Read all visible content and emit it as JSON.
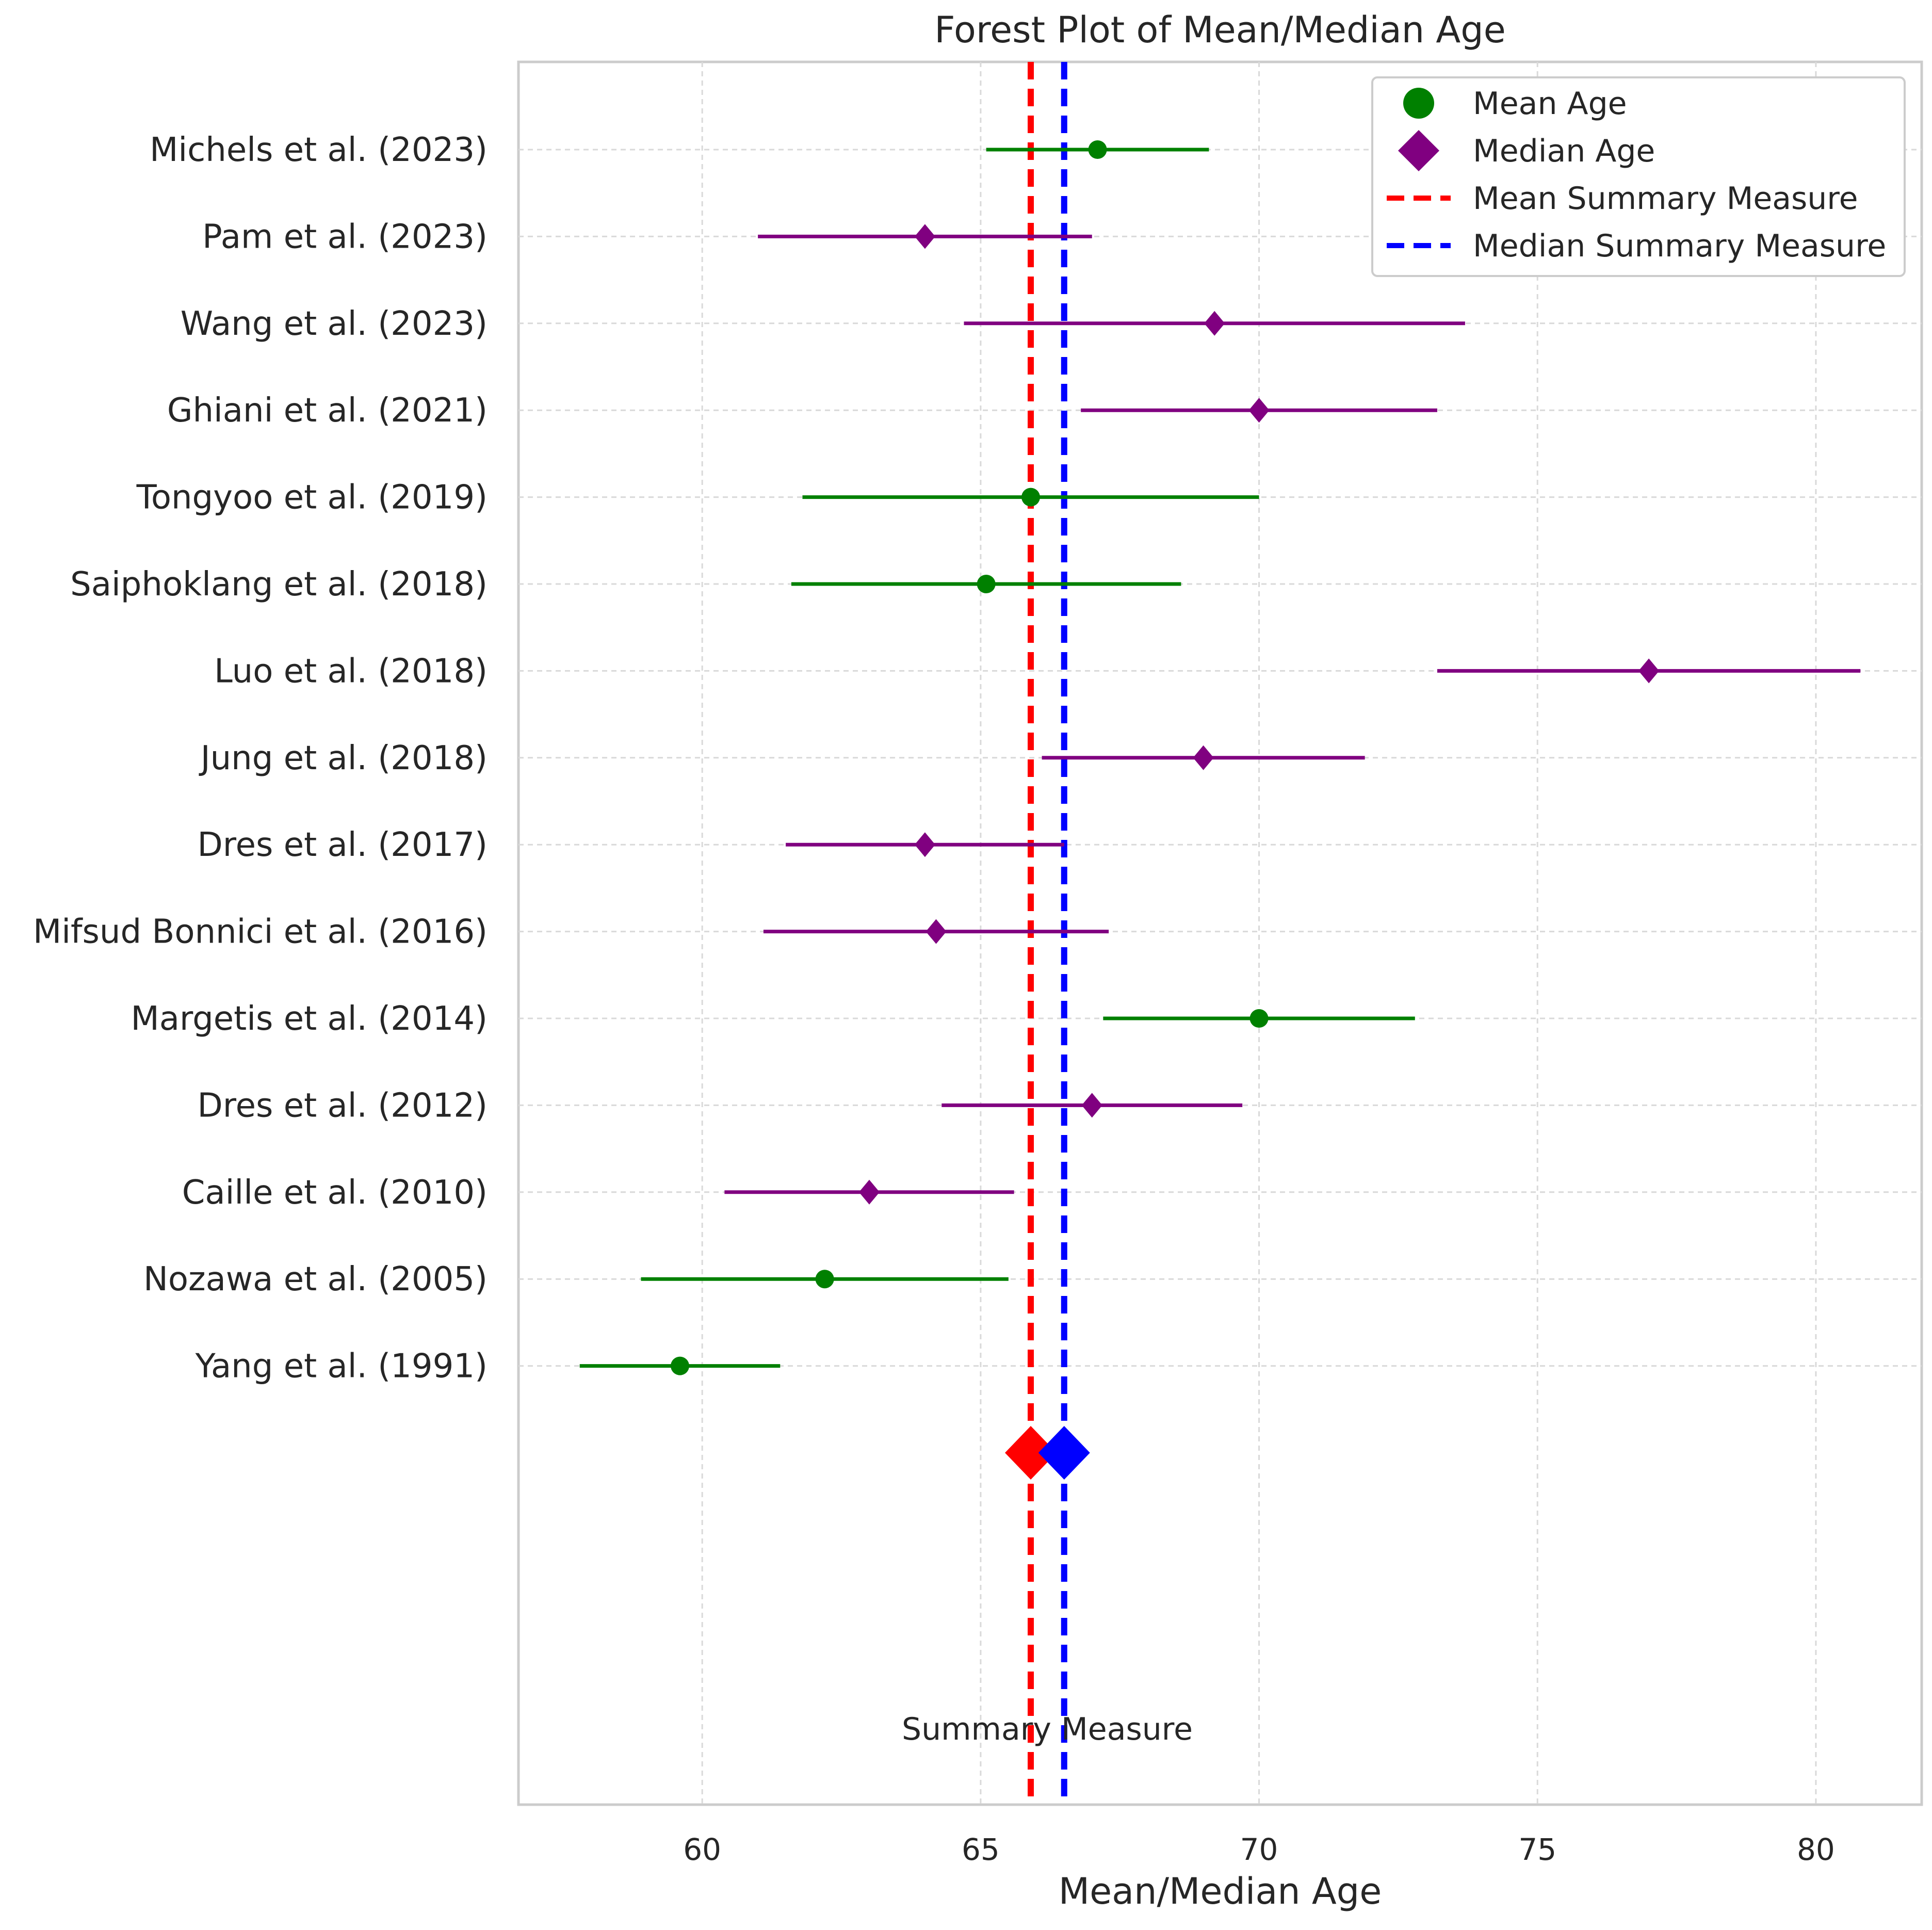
{
  "chart_data": {
    "type": "forest",
    "title": "Forest Plot of Mean/Median Age",
    "xlabel": "Mean/Median Age",
    "ylabel": "",
    "xlim": [
      56.7,
      81.9
    ],
    "xticks": [
      60,
      65,
      70,
      75,
      80
    ],
    "grid": true,
    "legend_position": "top-right",
    "legend": [
      {
        "label": "Mean Age",
        "kind": "circle",
        "color": "#008000"
      },
      {
        "label": "Median Age",
        "kind": "diamond",
        "color": "#800080"
      },
      {
        "label": "Mean Summary Measure",
        "kind": "dashed-line",
        "color": "#ff0000"
      },
      {
        "label": "Median Summary Measure",
        "kind": "dashed-line",
        "color": "#0000ff"
      }
    ],
    "studies": [
      {
        "label": "Michels et al. (2023)",
        "type": "mean",
        "value": 67.1,
        "lower": 65.1,
        "upper": 69.1
      },
      {
        "label": "Pam et al. (2023)",
        "type": "median",
        "value": 64.0,
        "lower": 61.0,
        "upper": 67.0
      },
      {
        "label": "Wang et al. (2023)",
        "type": "median",
        "value": 69.2,
        "lower": 64.7,
        "upper": 73.7
      },
      {
        "label": "Ghiani et al. (2021)",
        "type": "median",
        "value": 70.0,
        "lower": 66.8,
        "upper": 73.2
      },
      {
        "label": "Tongyoo et al. (2019)",
        "type": "mean",
        "value": 65.9,
        "lower": 61.8,
        "upper": 70.0
      },
      {
        "label": "Saiphoklang et al. (2018)",
        "type": "mean",
        "value": 65.1,
        "lower": 61.6,
        "upper": 68.6
      },
      {
        "label": "Luo et al. (2018)",
        "type": "median",
        "value": 77.0,
        "lower": 73.2,
        "upper": 80.8
      },
      {
        "label": "Jung et al. (2018)",
        "type": "median",
        "value": 69.0,
        "lower": 66.1,
        "upper": 71.9
      },
      {
        "label": "Dres et al. (2017)",
        "type": "median",
        "value": 64.0,
        "lower": 61.5,
        "upper": 66.5
      },
      {
        "label": "Mifsud Bonnici et al. (2016)",
        "type": "median",
        "value": 64.2,
        "lower": 61.1,
        "upper": 67.3
      },
      {
        "label": "Margetis et al. (2014)",
        "type": "mean",
        "value": 70.0,
        "lower": 67.2,
        "upper": 72.8
      },
      {
        "label": "Dres et al. (2012)",
        "type": "median",
        "value": 67.0,
        "lower": 64.3,
        "upper": 69.7
      },
      {
        "label": "Caille et al. (2010)",
        "type": "median",
        "value": 63.0,
        "lower": 60.4,
        "upper": 65.6
      },
      {
        "label": "Nozawa et al. (2005)",
        "type": "mean",
        "value": 62.2,
        "lower": 58.9,
        "upper": 65.5
      },
      {
        "label": "Yang et al. (1991)",
        "type": "mean",
        "value": 59.6,
        "lower": 57.8,
        "upper": 61.4
      }
    ],
    "summary": {
      "label": "Summary Measure",
      "mean": {
        "value": 65.9,
        "color": "#ff0000"
      },
      "median": {
        "value": 66.5,
        "color": "#0000ff"
      }
    }
  }
}
